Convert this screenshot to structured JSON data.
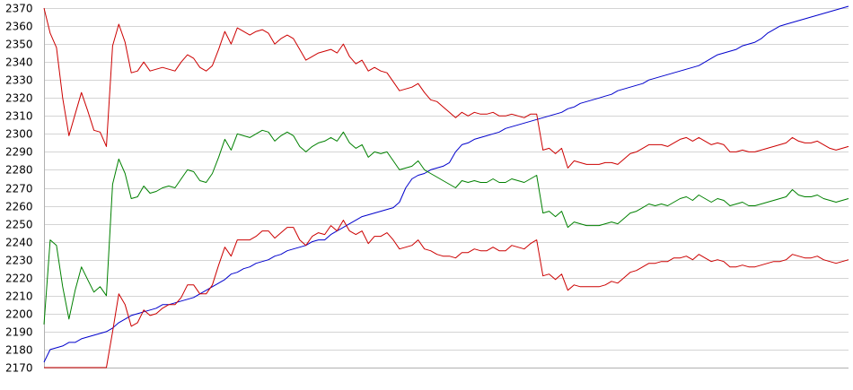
{
  "chart_data": {
    "type": "line",
    "title": "",
    "xlabel": "",
    "ylabel": "",
    "ylim": [
      2170,
      2370
    ],
    "yticks": [
      2170,
      2180,
      2190,
      2200,
      2210,
      2220,
      2230,
      2240,
      2250,
      2260,
      2270,
      2280,
      2290,
      2300,
      2310,
      2320,
      2330,
      2340,
      2350,
      2360,
      2370
    ],
    "grid": true,
    "legend": "none",
    "x": [
      0,
      1,
      2,
      3,
      4,
      5,
      6,
      7,
      8,
      9,
      10,
      11,
      12,
      13,
      14,
      15,
      16,
      17,
      18,
      19,
      20,
      21,
      22,
      23,
      24,
      25,
      26,
      27,
      28,
      29,
      30,
      31,
      32,
      33,
      34,
      35,
      36,
      37,
      38,
      39,
      40,
      41,
      42,
      43,
      44,
      45,
      46,
      47,
      48,
      49,
      50,
      51,
      52,
      53,
      54,
      55,
      56,
      57,
      58,
      59,
      60,
      61,
      62,
      63,
      64,
      65,
      66,
      67,
      68,
      69,
      70,
      71,
      72,
      73,
      74,
      75,
      76,
      77,
      78,
      79,
      80,
      81,
      82,
      83,
      84,
      85,
      86,
      87,
      88,
      89,
      90,
      91,
      92,
      93,
      94,
      95,
      96,
      97,
      98,
      99,
      100,
      101,
      102,
      103,
      104,
      105,
      106,
      107,
      108,
      109,
      110,
      111,
      112,
      113,
      114,
      115,
      116,
      117,
      118,
      119,
      120,
      121,
      122,
      123,
      124,
      125,
      126,
      127,
      128,
      129
    ],
    "series": [
      {
        "color": "#0000cc",
        "values": [
          2173,
          2180,
          2181,
          2182,
          2184,
          2184,
          2186,
          2187,
          2188,
          2189,
          2190,
          2192,
          2195,
          2197,
          2199,
          2200,
          2201,
          2202,
          2203,
          2205,
          2205,
          2206,
          2207,
          2208,
          2209,
          2211,
          2213,
          2215,
          2217,
          2219,
          2222,
          2223,
          2225,
          2226,
          2228,
          2229,
          2230,
          2232,
          2233,
          2235,
          2236,
          2237,
          2238,
          2240,
          2241,
          2241,
          2244,
          2246,
          2248,
          2250,
          2252,
          2254,
          2255,
          2256,
          2257,
          2258,
          2259,
          2262,
          2270,
          2275,
          2277,
          2278,
          2280,
          2281,
          2282,
          2284,
          2290,
          2294,
          2295,
          2297,
          2298,
          2299,
          2300,
          2301,
          2303,
          2304,
          2305,
          2306,
          2307,
          2308,
          2309,
          2310,
          2311,
          2312,
          2314,
          2315,
          2317,
          2318,
          2319,
          2320,
          2321,
          2322,
          2324,
          2325,
          2326,
          2327,
          2328,
          2330,
          2331,
          2332,
          2333,
          2334,
          2335,
          2336,
          2337,
          2338,
          2340,
          2342,
          2344,
          2345,
          2346,
          2347,
          2349,
          2350,
          2351,
          2353,
          2356,
          2358,
          2360,
          2361,
          2362,
          2363,
          2364,
          2365,
          2366,
          2367,
          2368,
          2369,
          2370,
          2371
        ]
      },
      {
        "color": "#008000",
        "values": [
          2194,
          2241,
          2238,
          2215,
          2197,
          2213,
          2226,
          2219,
          2212,
          2215,
          2210,
          2272,
          2286,
          2278,
          2264,
          2265,
          2271,
          2267,
          2268,
          2270,
          2271,
          2270,
          2275,
          2280,
          2279,
          2274,
          2273,
          2278,
          2287,
          2297,
          2291,
          2300,
          2299,
          2298,
          2300,
          2302,
          2301,
          2296,
          2299,
          2301,
          2299,
          2293,
          2290,
          2293,
          2295,
          2296,
          2298,
          2296,
          2301,
          2295,
          2292,
          2294,
          2287,
          2290,
          2289,
          2290,
          2285,
          2280,
          2281,
          2282,
          2285,
          2280,
          2278,
          2276,
          2274,
          2272,
          2270,
          2274,
          2273,
          2274,
          2273,
          2273,
          2275,
          2273,
          2273,
          2275,
          2274,
          2273,
          2275,
          2277,
          2256,
          2257,
          2254,
          2257,
          2248,
          2251,
          2250,
          2249,
          2249,
          2249,
          2250,
          2251,
          2250,
          2253,
          2256,
          2257,
          2259,
          2261,
          2260,
          2261,
          2260,
          2262,
          2264,
          2265,
          2263,
          2266,
          2264,
          2262,
          2264,
          2263,
          2260,
          2261,
          2262,
          2260,
          2260,
          2261,
          2262,
          2263,
          2264,
          2265,
          2269,
          2266,
          2265,
          2265,
          2266,
          2264,
          2263,
          2262,
          2263,
          2264
        ]
      },
      {
        "color": "#cc0000",
        "values": [
          2370,
          2356,
          2348,
          2320,
          2299,
          2311,
          2323,
          2313,
          2302,
          2301,
          2293,
          2349,
          2361,
          2351,
          2334,
          2335,
          2340,
          2335,
          2336,
          2337,
          2336,
          2335,
          2340,
          2344,
          2342,
          2337,
          2335,
          2338,
          2347,
          2357,
          2350,
          2359,
          2357,
          2355,
          2357,
          2358,
          2356,
          2350,
          2353,
          2355,
          2353,
          2347,
          2341,
          2343,
          2345,
          2346,
          2347,
          2345,
          2350,
          2343,
          2339,
          2341,
          2335,
          2337,
          2335,
          2334,
          2329,
          2324,
          2325,
          2326,
          2328,
          2323,
          2319,
          2318,
          2315,
          2312,
          2309,
          2312,
          2310,
          2312,
          2311,
          2311,
          2312,
          2310,
          2310,
          2311,
          2310,
          2309,
          2311,
          2311,
          2291,
          2292,
          2289,
          2292,
          2281,
          2285,
          2284,
          2283,
          2283,
          2283,
          2284,
          2284,
          2283,
          2286,
          2289,
          2290,
          2292,
          2294,
          2294,
          2294,
          2293,
          2295,
          2297,
          2298,
          2296,
          2298,
          2296,
          2294,
          2295,
          2294,
          2290,
          2290,
          2291,
          2290,
          2290,
          2291,
          2292,
          2293,
          2294,
          2295,
          2298,
          2296,
          2295,
          2295,
          2296,
          2294,
          2292,
          2291,
          2292,
          2293
        ]
      },
      {
        "color": "#cc0000",
        "values": [
          2170,
          2170,
          2170,
          2170,
          2170,
          2170,
          2170,
          2170,
          2170,
          2170,
          2170,
          2190,
          2211,
          2205,
          2193,
          2195,
          2202,
          2199,
          2200,
          2203,
          2205,
          2205,
          2209,
          2216,
          2216,
          2211,
          2211,
          2216,
          2227,
          2237,
          2232,
          2241,
          2241,
          2241,
          2243,
          2246,
          2246,
          2242,
          2245,
          2248,
          2248,
          2241,
          2238,
          2243,
          2245,
          2244,
          2249,
          2246,
          2252,
          2246,
          2244,
          2246,
          2239,
          2243,
          2243,
          2245,
          2241,
          2236,
          2237,
          2238,
          2241,
          2236,
          2235,
          2233,
          2232,
          2232,
          2231,
          2234,
          2234,
          2236,
          2235,
          2235,
          2237,
          2235,
          2235,
          2238,
          2237,
          2236,
          2239,
          2241,
          2221,
          2222,
          2219,
          2222,
          2213,
          2216,
          2215,
          2215,
          2215,
          2215,
          2216,
          2218,
          2217,
          2220,
          2223,
          2224,
          2226,
          2228,
          2228,
          2229,
          2229,
          2231,
          2231,
          2232,
          2230,
          2233,
          2231,
          2229,
          2230,
          2229,
          2226,
          2226,
          2227,
          2226,
          2226,
          2227,
          2228,
          2229,
          2229,
          2230,
          2233,
          2232,
          2231,
          2231,
          2232,
          2230,
          2229,
          2228,
          2229,
          2230
        ]
      }
    ]
  }
}
